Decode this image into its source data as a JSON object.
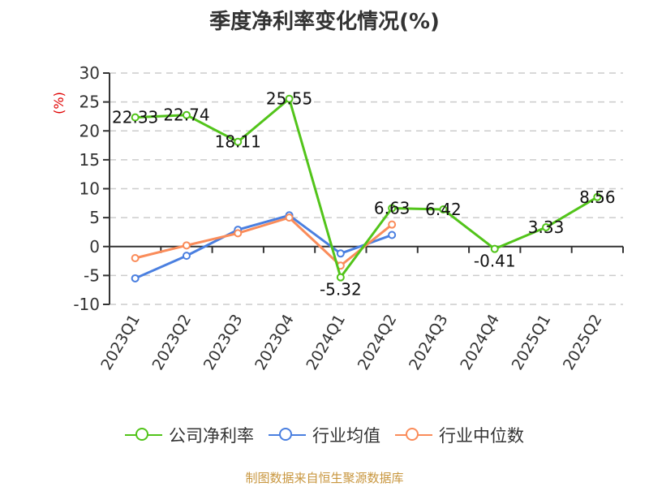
{
  "title": "季度净利率变化情况(%)",
  "footer": "制图数据来自恒生聚源数据库",
  "chart_data": {
    "type": "line",
    "title": "季度净利率变化情况(%)",
    "xlabel": "",
    "ylabel": "(%)",
    "ylim": [
      -10,
      30
    ],
    "yticks": [
      30,
      25,
      20,
      15,
      10,
      5,
      0,
      -5,
      -10
    ],
    "grid": true,
    "legend_position": "bottom",
    "categories": [
      "2023Q1",
      "2023Q2",
      "2023Q3",
      "2023Q4",
      "2024Q1",
      "2024Q2",
      "2024Q3",
      "2024Q4",
      "2025Q1",
      "2025Q2"
    ],
    "series": [
      {
        "name": "公司净利率",
        "color": "#52c41a",
        "values": [
          22.33,
          22.74,
          18.11,
          25.55,
          -5.32,
          6.63,
          6.42,
          -0.41,
          3.33,
          8.56
        ],
        "labels": true
      },
      {
        "name": "行业均值",
        "color": "#4a7fe0",
        "values": [
          -5.5,
          -1.6,
          2.9,
          5.4,
          -1.2,
          2.0,
          null,
          null,
          null,
          null
        ],
        "labels": false
      },
      {
        "name": "行业中位数",
        "color": "#fa8c5a",
        "values": [
          -2.0,
          0.2,
          2.3,
          5.0,
          -3.3,
          3.8,
          null,
          null,
          null,
          null
        ],
        "labels": false
      }
    ]
  },
  "legend": [
    {
      "label": "公司净利率",
      "color": "#52c41a"
    },
    {
      "label": "行业均值",
      "color": "#4a7fe0"
    },
    {
      "label": "行业中位数",
      "color": "#fa8c5a"
    }
  ]
}
